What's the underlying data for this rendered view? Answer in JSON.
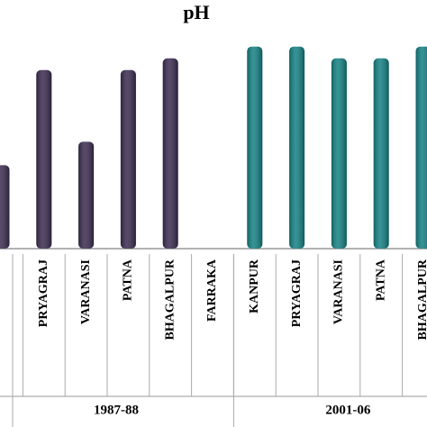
{
  "chart_data": {
    "type": "bar",
    "title": "pH",
    "ylim": [
      7.0,
      8.7
    ],
    "groups": [
      {
        "name": "1987-88",
        "color": "#3a2b4f",
        "categories": [
          null,
          "PRYAGRAJ",
          "VARANASI",
          "PATNA",
          "BHAGALPUR",
          "FARRAKA"
        ],
        "values": [
          7.64,
          8.37,
          7.82,
          8.37,
          8.46,
          null
        ]
      },
      {
        "name": "2001-06",
        "color": "#138082",
        "categories": [
          "KANPUR",
          "PRYAGRAJ",
          "VARANASI",
          "PATNA",
          "BHAGALPUR"
        ],
        "values": [
          8.55,
          8.55,
          8.46,
          8.46,
          8.55
        ]
      }
    ]
  }
}
